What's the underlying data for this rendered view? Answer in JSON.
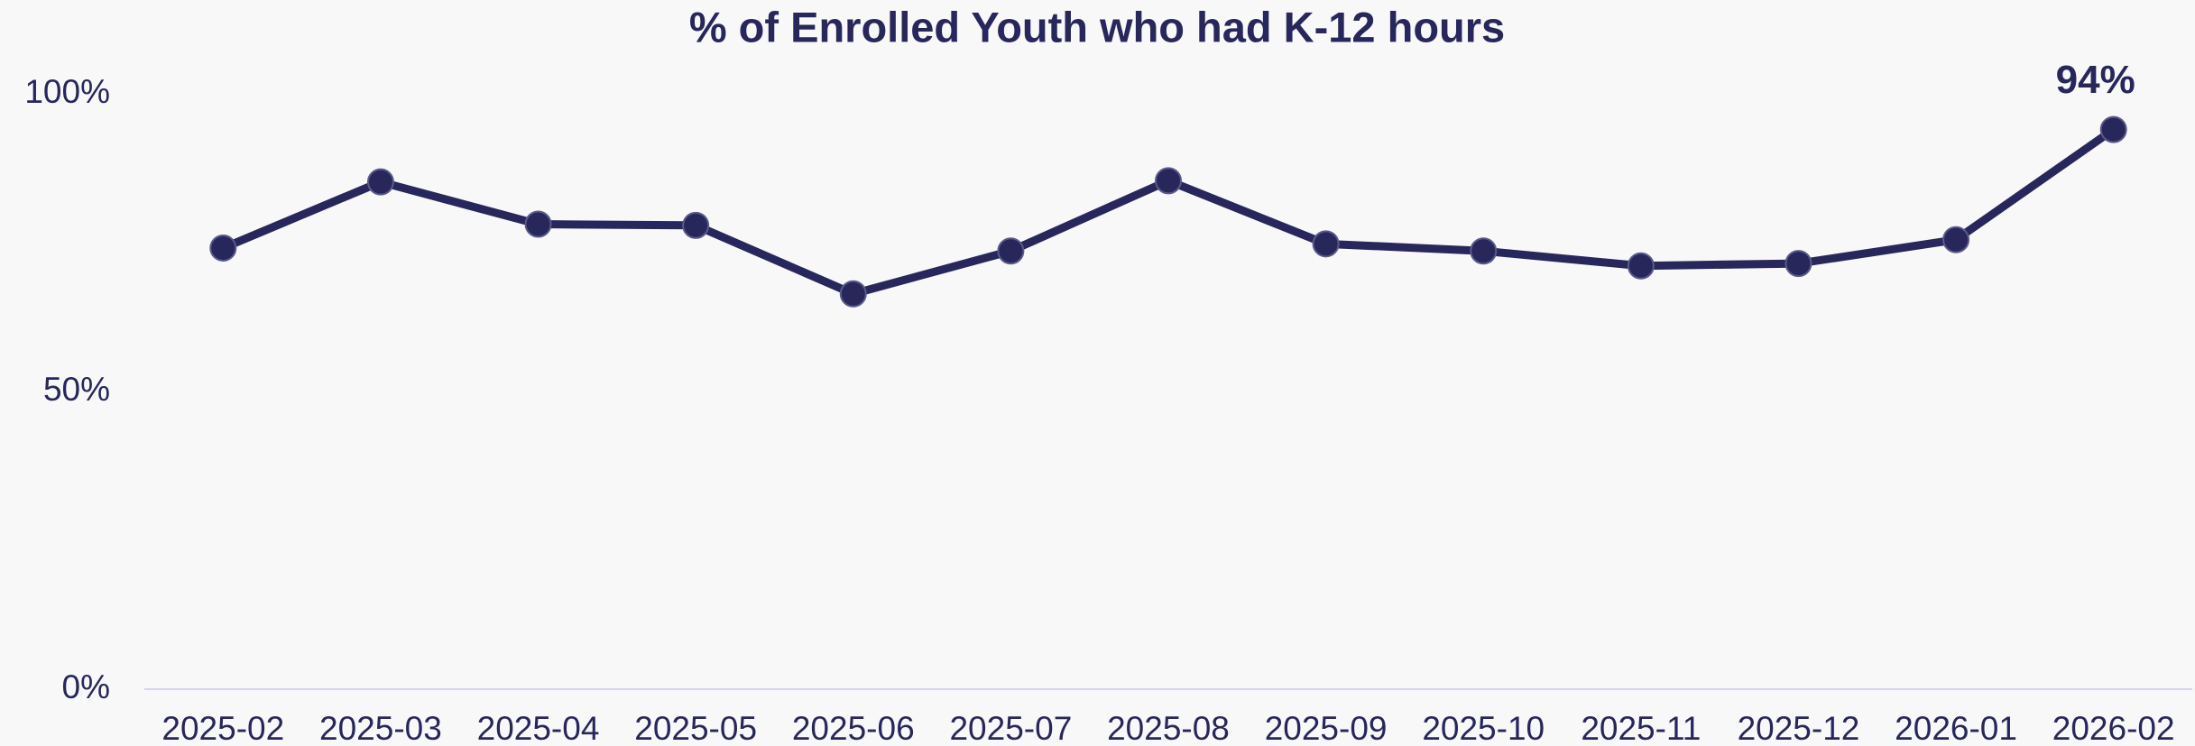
{
  "chart_data": {
    "type": "line",
    "title": "% of Enrolled Youth who had K-12 hours",
    "categories": [
      "2025-02",
      "2025-03",
      "2025-04",
      "2025-05",
      "2025-06",
      "2025-07",
      "2025-08",
      "2025-09",
      "2025-10",
      "2025-11",
      "2025-12",
      "2026-01",
      "2026-02"
    ],
    "series": [
      {
        "name": null,
        "color": "#27275c",
        "values": [
          74.1,
          85.2,
          78.1,
          77.9,
          66.4,
          73.6,
          85.4,
          74.8,
          73.6,
          71.1,
          71.5,
          75.5,
          94
        ],
        "value_labels": [
          null,
          null,
          null,
          null,
          null,
          null,
          null,
          null,
          null,
          null,
          null,
          null,
          "94%"
        ]
      }
    ],
    "ylim": [
      0,
      100
    ],
    "yticks": [
      {
        "value": 0,
        "label": "0%"
      },
      {
        "value": 50,
        "label": "50%"
      },
      {
        "value": 100,
        "label": "100%"
      }
    ],
    "grid": false
  }
}
